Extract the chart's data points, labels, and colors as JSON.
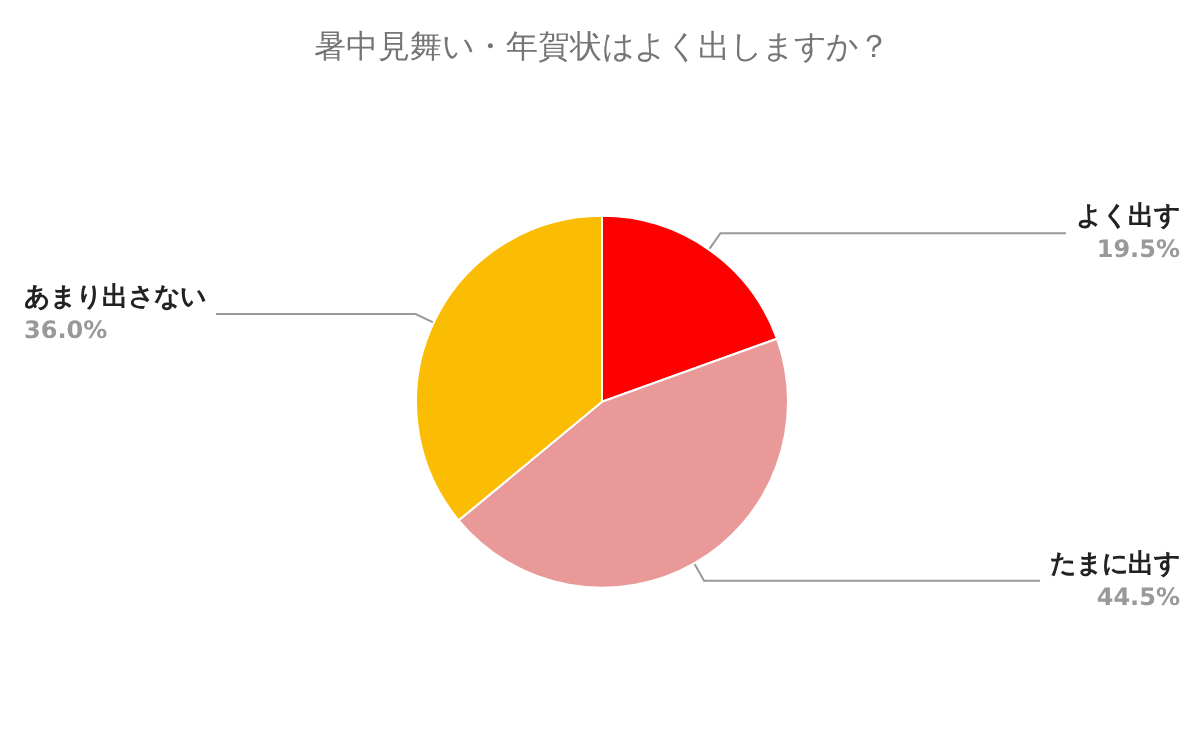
{
  "chart_data": {
    "type": "pie",
    "title": "暑中見舞い・年賀状はよく出しますか？",
    "categories": [
      "よく出す",
      "たまに出す",
      "あまり出さない"
    ],
    "values": [
      19.5,
      44.5,
      36.0
    ],
    "value_labels": [
      "19.5%",
      "44.5%",
      "36.0%"
    ],
    "colors": [
      "#ff0000",
      "#ea9999",
      "#fbbc04"
    ],
    "legend": false
  }
}
